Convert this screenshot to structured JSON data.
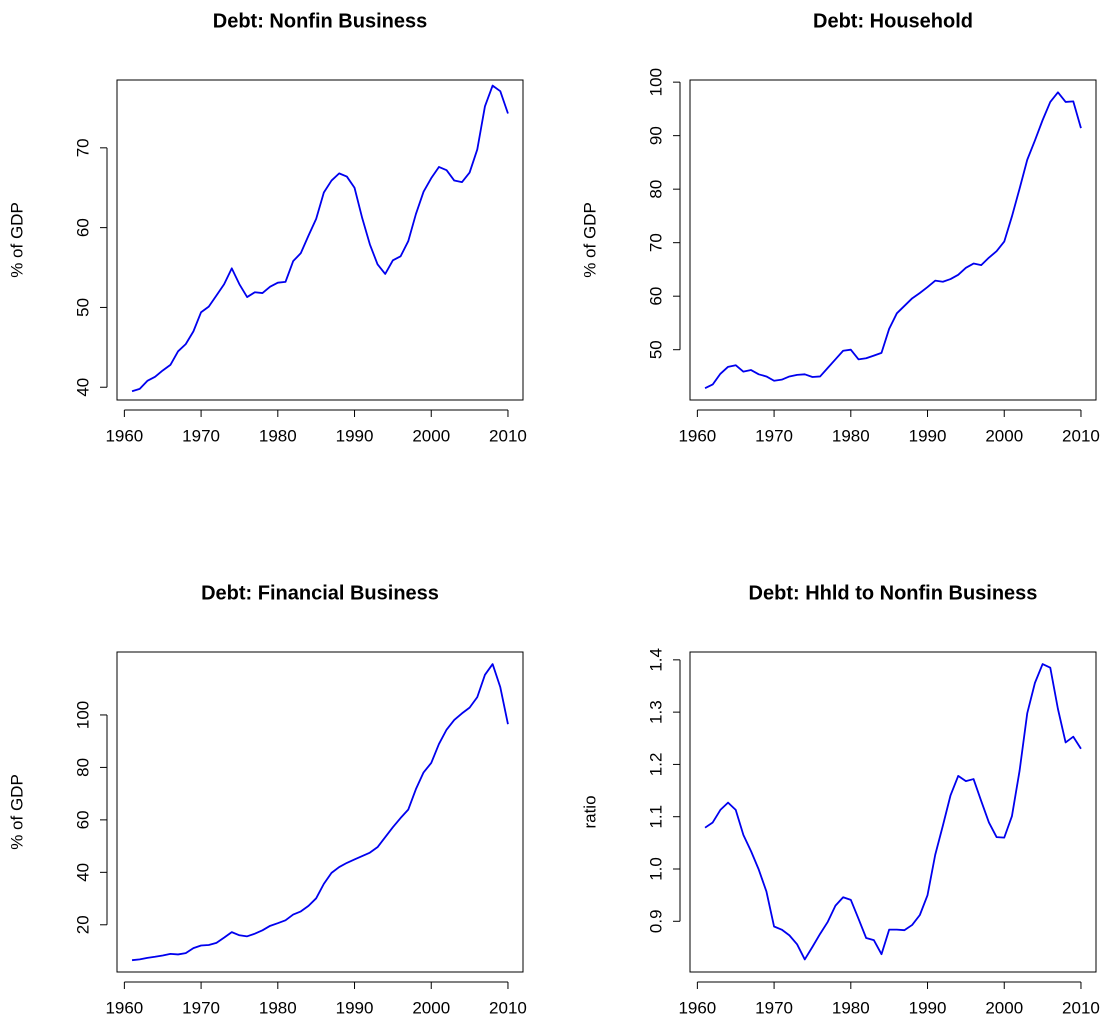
{
  "chart_data": [
    {
      "type": "line",
      "title": "Debt: Nonfin Business",
      "ylabel": "% of GDP",
      "color": "#0000ee",
      "x": [
        1961,
        1962,
        1963,
        1964,
        1965,
        1966,
        1967,
        1968,
        1969,
        1970,
        1971,
        1972,
        1973,
        1974,
        1975,
        1976,
        1977,
        1978,
        1979,
        1980,
        1981,
        1982,
        1983,
        1984,
        1985,
        1986,
        1987,
        1988,
        1989,
        1990,
        1991,
        1992,
        1993,
        1994,
        1995,
        1996,
        1997,
        1998,
        1999,
        2000,
        2001,
        2002,
        2003,
        2004,
        2005,
        2006,
        2007,
        2008,
        2009,
        2010
      ],
      "values": [
        39.5,
        39.8,
        40.8,
        41.3,
        42.1,
        42.8,
        44.5,
        45.4,
        47.0,
        49.4,
        50.1,
        51.5,
        52.9,
        54.9,
        52.9,
        51.3,
        51.9,
        51.8,
        52.6,
        53.1,
        53.2,
        55.8,
        56.8,
        59.0,
        61.1,
        64.4,
        65.9,
        66.8,
        66.4,
        65.0,
        61.2,
        57.9,
        55.4,
        54.2,
        55.9,
        56.4,
        58.3,
        61.7,
        64.5,
        66.2,
        67.6,
        67.2,
        65.9,
        65.7,
        66.9,
        69.8,
        75.2,
        77.8,
        77.1,
        74.3
      ],
      "xlim": [
        1959.04,
        2011.96
      ],
      "xticks": [
        1960,
        1970,
        1980,
        1990,
        2000,
        2010
      ],
      "ylim": [
        38.4,
        78.5
      ],
      "yticks": [
        40,
        50,
        60,
        70
      ]
    },
    {
      "type": "line",
      "title": "Debt: Household",
      "ylabel": "% of GDP",
      "color": "#0000ee",
      "x": [
        1961,
        1962,
        1963,
        1964,
        1965,
        1966,
        1967,
        1968,
        1969,
        1970,
        1971,
        1972,
        1973,
        1974,
        1975,
        1976,
        1977,
        1978,
        1979,
        1980,
        1981,
        1982,
        1983,
        1984,
        1985,
        1986,
        1987,
        1988,
        1989,
        1990,
        1991,
        1992,
        1993,
        1994,
        1995,
        1996,
        1997,
        1998,
        1999,
        2000,
        2001,
        2002,
        2003,
        2004,
        2005,
        2006,
        2007,
        2008,
        2009,
        2010
      ],
      "values": [
        42.8,
        43.5,
        45.5,
        46.8,
        47.1,
        45.9,
        46.2,
        45.4,
        45.0,
        44.2,
        44.4,
        45.0,
        45.3,
        45.4,
        44.9,
        45.0,
        46.6,
        48.2,
        49.8,
        50.0,
        48.2,
        48.4,
        48.9,
        49.4,
        53.9,
        56.8,
        58.2,
        59.6,
        60.6,
        61.7,
        62.9,
        62.7,
        63.2,
        64.0,
        65.3,
        66.1,
        65.8,
        67.2,
        68.4,
        70.2,
        74.9,
        80.1,
        85.5,
        89.1,
        92.9,
        96.3,
        98.1,
        96.3,
        96.4,
        91.4
      ],
      "xlim": [
        1959.04,
        2011.96
      ],
      "xticks": [
        1960,
        1970,
        1980,
        1990,
        2000,
        2010
      ],
      "ylim": [
        40.6,
        100.4
      ],
      "yticks": [
        50,
        60,
        70,
        80,
        90,
        100
      ]
    },
    {
      "type": "line",
      "title": "Debt: Financial Business",
      "ylabel": "% of GDP",
      "color": "#0000ee",
      "x": [
        1961,
        1962,
        1963,
        1964,
        1965,
        1966,
        1967,
        1968,
        1969,
        1970,
        1971,
        1972,
        1973,
        1974,
        1975,
        1976,
        1977,
        1978,
        1979,
        1980,
        1981,
        1982,
        1983,
        1984,
        1985,
        1986,
        1987,
        1988,
        1989,
        1990,
        1991,
        1992,
        1993,
        1994,
        1995,
        1996,
        1997,
        1998,
        1999,
        2000,
        2001,
        2002,
        2003,
        2004,
        2005,
        2006,
        2007,
        2008,
        2009,
        2010
      ],
      "values": [
        6.5,
        6.8,
        7.4,
        7.8,
        8.3,
        8.9,
        8.7,
        9.2,
        11.1,
        12.1,
        12.3,
        13.1,
        15.1,
        17.2,
        16.0,
        15.6,
        16.6,
        17.9,
        19.6,
        20.6,
        21.7,
        23.9,
        25.1,
        27.2,
        30.1,
        35.6,
        39.8,
        42.0,
        43.6,
        44.9,
        46.2,
        47.5,
        49.6,
        53.4,
        57.2,
        60.7,
        63.9,
        71.7,
        78.1,
        81.7,
        88.9,
        94.4,
        98.1,
        100.6,
        102.8,
        106.8,
        115.3,
        119.4,
        110.6,
        96.5
      ],
      "xlim": [
        1959.04,
        2011.96
      ],
      "xticks": [
        1960,
        1970,
        1980,
        1990,
        2000,
        2010
      ],
      "ylim": [
        2.0,
        124.0
      ],
      "yticks": [
        20,
        40,
        60,
        80,
        100
      ]
    },
    {
      "type": "line",
      "title": "Debt: Hhld to Nonfin Business",
      "ylabel": "ratio",
      "color": "#0000ee",
      "x": [
        1961,
        1962,
        1963,
        1964,
        1965,
        1966,
        1967,
        1968,
        1969,
        1970,
        1971,
        1972,
        1973,
        1974,
        1975,
        1976,
        1977,
        1978,
        1979,
        1980,
        1981,
        1982,
        1983,
        1984,
        1985,
        1986,
        1987,
        1988,
        1989,
        1990,
        1991,
        1992,
        1993,
        1994,
        1995,
        1996,
        1997,
        1998,
        1999,
        2000,
        2001,
        2002,
        2003,
        2004,
        2005,
        2006,
        2007,
        2008,
        2009,
        2010
      ],
      "values": [
        1.079,
        1.089,
        1.113,
        1.127,
        1.113,
        1.065,
        1.034,
        0.999,
        0.957,
        0.89,
        0.884,
        0.873,
        0.856,
        0.827,
        0.851,
        0.876,
        0.899,
        0.93,
        0.946,
        0.941,
        0.905,
        0.868,
        0.864,
        0.837,
        0.884,
        0.884,
        0.883,
        0.893,
        0.912,
        0.95,
        1.027,
        1.083,
        1.141,
        1.178,
        1.168,
        1.172,
        1.13,
        1.089,
        1.061,
        1.06,
        1.101,
        1.188,
        1.298,
        1.356,
        1.392,
        1.385,
        1.306,
        1.242,
        1.253,
        1.23
      ],
      "xlim": [
        1959.04,
        2011.96
      ],
      "xticks": [
        1960,
        1970,
        1980,
        1990,
        2000,
        2010
      ],
      "ylim": [
        0.803,
        1.415
      ],
      "yticks": [
        0.9,
        {
          "value": 1,
          "label": "1.0"
        },
        1.1,
        1.2,
        1.3,
        1.4
      ]
    }
  ]
}
